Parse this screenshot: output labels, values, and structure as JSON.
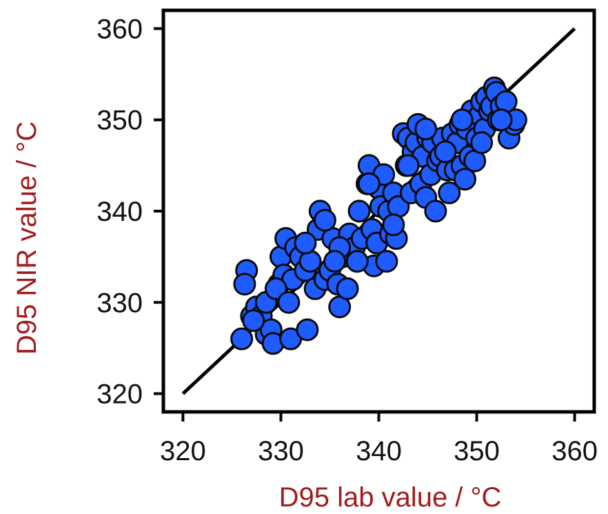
{
  "colors": {
    "point_fill": "#1f5cff",
    "point_stroke": "#0a0a0a",
    "axis_title": "#a01c1c",
    "frame": "#000000",
    "line": "#000000"
  },
  "chart_data": {
    "type": "scatter",
    "title": "",
    "xlabel": "D95 lab value / °C",
    "ylabel": "D95 NIR value / °C",
    "xlim": [
      318,
      362
    ],
    "ylim": [
      318,
      362
    ],
    "xticks": [
      "320",
      "330",
      "340",
      "350",
      "360"
    ],
    "yticks": [
      "320",
      "330",
      "340",
      "350",
      "360"
    ],
    "grid": false,
    "legend": "none",
    "reference_line": {
      "x": [
        320,
        360
      ],
      "y": [
        320,
        360
      ]
    },
    "points": {
      "x": [
        326.0,
        326.5,
        326.3,
        327.0,
        327.5,
        328.0,
        328.5,
        329.0,
        329.2,
        329.8,
        330.0,
        330.3,
        330.5,
        331.0,
        331.2,
        331.5,
        332.0,
        332.5,
        332.7,
        333.0,
        333.5,
        333.8,
        334.0,
        334.5,
        335.0,
        335.3,
        335.8,
        336.0,
        336.3,
        336.8,
        337.0,
        337.5,
        338.0,
        338.3,
        338.8,
        339.0,
        339.3,
        339.5,
        339.8,
        340.0,
        340.2,
        340.5,
        340.8,
        341.0,
        341.2,
        341.5,
        341.8,
        342.0,
        342.5,
        342.8,
        343.0,
        343.3,
        343.5,
        343.8,
        344.0,
        344.3,
        344.5,
        344.8,
        345.0,
        345.3,
        345.5,
        345.8,
        346.0,
        346.3,
        346.5,
        347.0,
        347.2,
        347.5,
        347.8,
        348.0,
        348.3,
        348.5,
        348.8,
        349.0,
        349.3,
        349.5,
        349.8,
        350.0,
        350.3,
        350.5,
        350.8,
        351.0,
        351.3,
        351.5,
        351.8,
        352.0,
        352.2,
        352.5,
        352.8,
        353.0,
        353.3,
        353.8,
        354.0,
        328.5,
        329.5,
        330.8,
        332.5,
        334.5,
        336.0,
        337.8,
        339.0,
        341.5,
        343.0,
        344.8,
        346.8,
        348.5,
        350.5,
        352.5,
        327.2,
        335.5
      ],
      "y": [
        326.0,
        333.5,
        332.0,
        328.5,
        329.5,
        328.5,
        326.5,
        327.0,
        325.5,
        332.0,
        335.0,
        333.0,
        337.0,
        326.0,
        332.5,
        336.0,
        335.0,
        333.5,
        327.0,
        334.5,
        331.5,
        338.0,
        340.0,
        332.5,
        333.5,
        337.0,
        332.0,
        329.5,
        335.0,
        331.5,
        337.5,
        336.0,
        340.0,
        337.0,
        343.0,
        345.0,
        338.0,
        334.0,
        336.5,
        342.5,
        340.5,
        344.0,
        334.5,
        340.0,
        337.5,
        342.0,
        337.0,
        340.5,
        348.5,
        345.0,
        348.0,
        342.0,
        346.5,
        347.5,
        349.5,
        343.0,
        346.0,
        341.5,
        348.0,
        344.0,
        347.5,
        340.0,
        345.5,
        346.0,
        348.0,
        344.5,
        342.0,
        348.5,
        344.5,
        347.5,
        349.5,
        345.0,
        343.5,
        349.0,
        346.0,
        351.0,
        345.5,
        348.0,
        350.5,
        352.0,
        349.0,
        352.5,
        351.0,
        351.5,
        353.5,
        353.0,
        350.0,
        351.5,
        350.0,
        352.0,
        348.0,
        349.5,
        350.0,
        330.0,
        331.5,
        330.0,
        336.5,
        339.0,
        336.0,
        334.5,
        343.0,
        338.5,
        345.0,
        349.0,
        346.5,
        350.0,
        347.5,
        350.0,
        328.0,
        334.5
      ]
    }
  }
}
